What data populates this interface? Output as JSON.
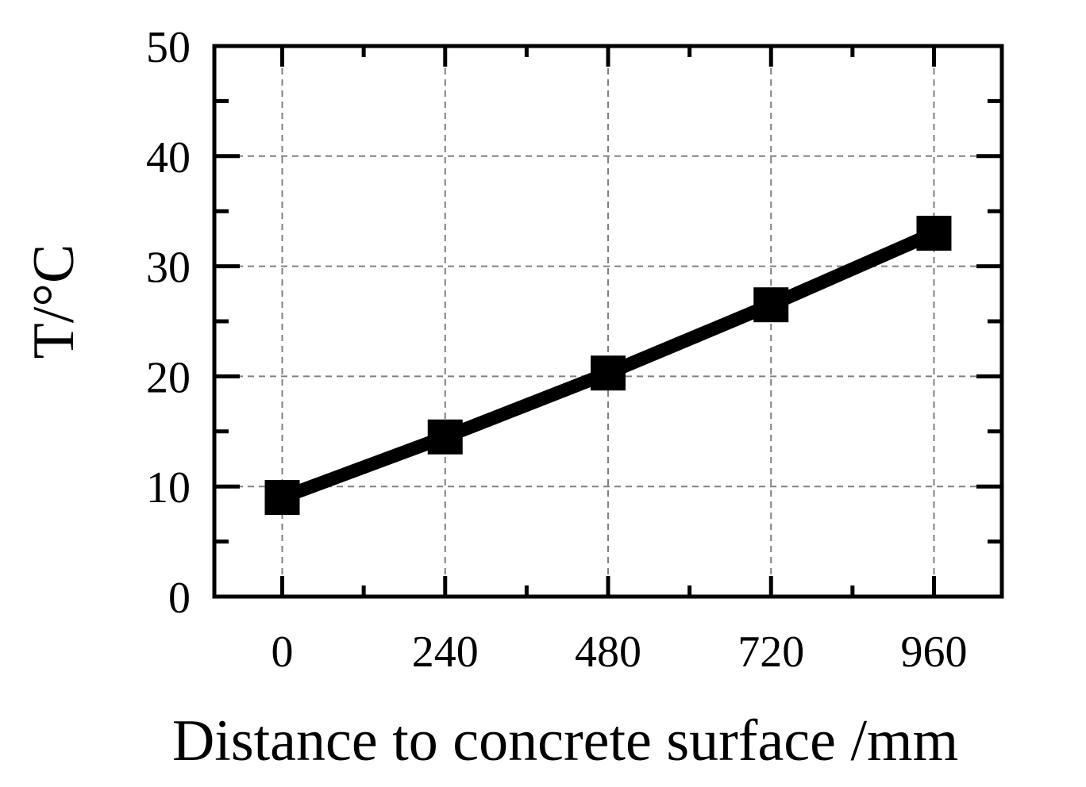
{
  "chart_data": {
    "type": "line",
    "title": "",
    "xlabel": "Distance to concrete  surface /mm",
    "ylabel": "T/°C",
    "x": [
      0,
      240,
      480,
      720,
      960
    ],
    "x_tick_labels": [
      "0",
      "240",
      "480",
      "720",
      "960"
    ],
    "y_tick_labels": [
      "0",
      "10",
      "20",
      "30",
      "40",
      "50"
    ],
    "xlim": [
      -100,
      1060
    ],
    "ylim": [
      0,
      50
    ],
    "grid": true,
    "series": [
      {
        "values": [
          9.0,
          14.5,
          20.3,
          26.5,
          33.0
        ]
      }
    ],
    "colors": {
      "line": "#000000",
      "marker": "#000000",
      "grid": "#808080"
    }
  }
}
